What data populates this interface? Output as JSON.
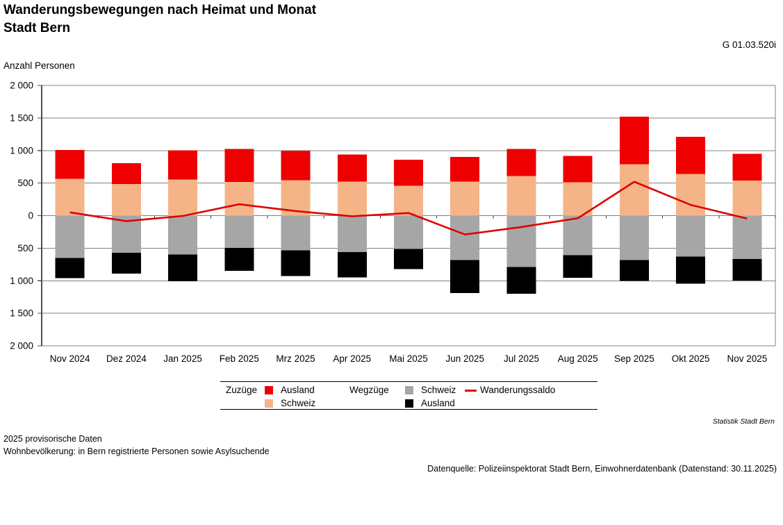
{
  "header": {
    "title": "Wanderungsbewegungen nach Heimat und Monat",
    "subtitle": "Stadt Bern",
    "chart_code": "G 01.03.520i"
  },
  "colors": {
    "zuzuege_ausland": "#ee0000",
    "zuzuege_schweiz": "#f4b488",
    "wegzuege_schweiz": "#a6a6a6",
    "wegzuege_ausland": "#000000",
    "wanderungssaldo": "#e00000",
    "subtitle_red": "#e30613",
    "gridline": "#808080",
    "axis": "#4d4d4d"
  },
  "chart_data": {
    "type": "bar",
    "subtype": "stacked-diverging-with-line",
    "title": "Wanderungsbewegungen nach Heimat und Monat — Stadt Bern",
    "ylabel": "Anzahl Personen",
    "xlabel": "",
    "ylim": [
      -2000,
      2000
    ],
    "grid": true,
    "legend_position": "bottom",
    "ytick_values": [
      2000,
      1500,
      1000,
      500,
      0,
      -500,
      -1000,
      -1500,
      -2000
    ],
    "ytick_labels": [
      "2 000",
      "1 500",
      "1 000",
      "500",
      "0",
      "500",
      "1 000",
      "1 500",
      "2 000"
    ],
    "categories": [
      "Nov 2024",
      "Dez 2024",
      "Jan 2025",
      "Feb 2025",
      "Mrz 2025",
      "Apr 2025",
      "Mai 2025",
      "Jun 2025",
      "Jul 2025",
      "Aug 2025",
      "Sep 2025",
      "Okt 2025",
      "Nov 2025"
    ],
    "series": [
      {
        "name": "Zuzüge Schweiz",
        "type": "bar",
        "direction": "up",
        "color_key": "zuzuege_schweiz",
        "values": [
          565,
          485,
          555,
          520,
          545,
          525,
          460,
          525,
          610,
          510,
          790,
          640,
          540
        ]
      },
      {
        "name": "Zuzüge Ausland",
        "type": "bar",
        "direction": "up",
        "color_key": "zuzuege_ausland",
        "values": [
          445,
          320,
          450,
          505,
          455,
          415,
          400,
          375,
          415,
          405,
          730,
          570,
          410
        ]
      },
      {
        "name": "Wegzüge Schweiz",
        "type": "bar",
        "direction": "down",
        "color_key": "wegzuege_schweiz",
        "values": [
          650,
          570,
          595,
          495,
          535,
          560,
          510,
          685,
          790,
          610,
          680,
          630,
          665
        ]
      },
      {
        "name": "Wegzüge Ausland",
        "type": "bar",
        "direction": "down",
        "color_key": "wegzuege_ausland",
        "values": [
          310,
          320,
          415,
          355,
          395,
          390,
          310,
          505,
          410,
          345,
          320,
          415,
          330
        ]
      },
      {
        "name": "Wanderungssaldo",
        "type": "line",
        "color_key": "wanderungssaldo",
        "values": [
          50,
          -85,
          -5,
          175,
          70,
          -10,
          40,
          -290,
          -175,
          -40,
          520,
          165,
          -45
        ]
      }
    ]
  },
  "legend": {
    "col1_header": "Zuzüge",
    "item_zuzuege_ausland": "Ausland",
    "item_zuzuege_schweiz": "Schweiz",
    "col2_header": "Wegzüge",
    "item_wegzuege_schweiz": "Schweiz",
    "item_wegzuege_ausland": "Ausland",
    "line_label": "Wanderungssaldo"
  },
  "footer": {
    "attribution": "Statistik Stadt Bern",
    "note1": "2025 provisorische Daten",
    "note2": "Wohnbevölkerung: in Bern registrierte Personen sowie Asylsuchende",
    "source": "Datenquelle: Polizeiinspektorat Stadt Bern, Einwohnerdatenbank (Datenstand: 30.11.2025)"
  }
}
